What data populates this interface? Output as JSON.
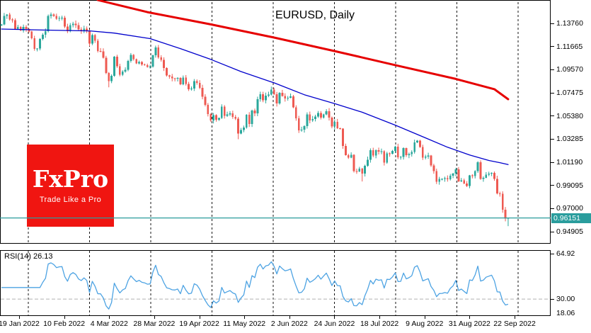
{
  "chart": {
    "title": "EURUSD, Daily",
    "symbol": "EURUSD",
    "timeframe": "Daily",
    "current_price": "0.96151"
  },
  "logo": {
    "name": "FxPro",
    "tagline": "Trade Like a Pro",
    "bg_color": "#f01511",
    "text_color": "#ffffff"
  },
  "price_axis": {
    "labels": [
      "1.13760",
      "1.11665",
      "1.09570",
      "1.07475",
      "1.05380",
      "1.03285",
      "1.01190",
      "0.99095",
      "0.97000",
      "0.94905"
    ],
    "current_label": "0.96151",
    "current_bg": "#2a9d9d"
  },
  "rsi_panel": {
    "label": "RSI(14) 26.13",
    "indicator": "RSI(14)",
    "value": "26.13",
    "scale_labels": [
      "64.92",
      "30.00",
      "18.06"
    ],
    "scale_values": [
      64.92,
      30.0,
      18.06
    ]
  },
  "date_axis": {
    "labels": [
      "19 Jan 2022",
      "10 Feb 2022",
      "4 Mar 2022",
      "28 Mar 2022",
      "19 Apr 2022",
      "11 May 2022",
      "2 Jun 2022",
      "24 Jun 2022",
      "18 Jul 2022",
      "9 Aug 2022",
      "31 Aug 2022",
      "22 Sep 2022"
    ]
  },
  "colors": {
    "bull": "#2aa79b",
    "bear": "#ee5a52",
    "sma_slow": "#e60000",
    "sma_fast": "#0000cc",
    "rsi_line": "#4da3e3",
    "price_line": "#2a9d9d",
    "grid": "#151515",
    "rsi_level": "#b0b0b0",
    "border": "#000000",
    "background": "#ffffff",
    "text": "#000000"
  },
  "chart_data": {
    "type": "candlestick",
    "title": "EURUSD, Daily",
    "x_tick_labels": [
      "19 Jan 2022",
      "10 Feb 2022",
      "4 Mar 2022",
      "28 Mar 2022",
      "19 Apr 2022",
      "11 May 2022",
      "2 Jun 2022",
      "24 Jun 2022",
      "18 Jul 2022",
      "9 Aug 2022",
      "31 Aug 2022",
      "22 Sep 2022"
    ],
    "y_ticks": [
      1.1376,
      1.11665,
      1.0957,
      1.07475,
      1.0538,
      1.03285,
      1.0119,
      0.99095,
      0.97,
      0.94905
    ],
    "current_price": 0.96151,
    "closes": [
      1.1367,
      1.1444,
      1.1455,
      1.1411,
      1.1406,
      1.1324,
      1.1344,
      1.1313,
      1.1345,
      1.1326,
      1.1301,
      1.124,
      1.1144,
      1.1148,
      1.1235,
      1.1273,
      1.1305,
      1.1442,
      1.1455,
      1.1442,
      1.1417,
      1.1424,
      1.1426,
      1.1348,
      1.1306,
      1.1359,
      1.1374,
      1.136,
      1.1323,
      1.1309,
      1.1327,
      1.1307,
      1.1193,
      1.127,
      1.1218,
      1.1125,
      1.1124,
      1.1066,
      1.0926,
      1.0854,
      1.0901,
      1.1075,
      1.0988,
      1.0911,
      1.0941,
      1.0955,
      1.1036,
      1.1091,
      1.1051,
      1.1015,
      1.1028,
      1.1004,
      1.0997,
      1.0982,
      1.0984,
      1.1086,
      1.1158,
      1.1067,
      1.1045,
      1.0971,
      1.0905,
      1.0895,
      1.0879,
      1.0876,
      1.0883,
      1.0826,
      1.0886,
      1.0828,
      1.0781,
      1.0785,
      1.0853,
      1.0838,
      1.0793,
      1.0711,
      1.0637,
      1.0556,
      1.0498,
      1.0545,
      1.0504,
      1.0519,
      1.0622,
      1.054,
      1.0551,
      1.056,
      1.0528,
      1.0513,
      1.0379,
      1.0411,
      1.0434,
      1.0549,
      1.0465,
      1.0588,
      1.0563,
      1.0691,
      1.0735,
      1.068,
      1.0723,
      1.0733,
      1.0777,
      1.0734,
      1.065,
      1.0748,
      1.0719,
      1.0695,
      1.0703,
      1.0716,
      1.0617,
      1.0518,
      1.0408,
      1.0414,
      1.0445,
      1.0551,
      1.0496,
      1.0511,
      1.0533,
      1.0566,
      1.0523,
      1.0553,
      1.0581,
      1.0523,
      1.0442,
      1.0484,
      1.0426,
      1.0423,
      1.0266,
      1.0184,
      1.016,
      1.0186,
      1.004,
      1.0036,
      1.006,
      1.0018,
      1.0088,
      1.0143,
      1.0227,
      1.018,
      1.0228,
      1.0214,
      1.0219,
      1.0115,
      1.0199,
      1.0196,
      1.0221,
      1.0261,
      1.0165,
      1.0166,
      1.0246,
      1.0182,
      1.0193,
      1.0212,
      1.0298,
      1.0316,
      1.0257,
      1.016,
      1.0171,
      1.018,
      1.009,
      1.0039,
      0.9942,
      0.9967,
      0.9968,
      0.9974,
      0.9965,
      0.9998,
      1.0015,
      1.0054,
      0.9945,
      0.9955,
      0.9928,
      0.9903,
      1.0,
      0.9995,
      1.004,
      1.012,
      0.997,
      0.9979,
      1.0006,
      1.0015,
      1.0023,
      0.997,
      0.9838,
      0.9835,
      0.969,
      0.9609,
      0.9615
    ],
    "wick_low_overrides": {
      "39": 0.0048,
      "86": 0.003,
      "131": 0.0066,
      "184": 0.0056
    },
    "overlays": [
      {
        "name": "long-term-ma",
        "color": "#e60000",
        "width": 3,
        "points_bar_price": [
          [
            35,
            1.1587
          ],
          [
            53,
            1.1478
          ],
          [
            76,
            1.1367
          ],
          [
            99,
            1.1248
          ],
          [
            121,
            1.1125
          ],
          [
            143,
            1.0998
          ],
          [
            165,
            1.0873
          ],
          [
            179,
            1.078
          ],
          [
            184,
            1.069
          ]
        ]
      },
      {
        "name": "medium-term-ma",
        "color": "#0000cc",
        "width": 1.3,
        "points_bar_price": [
          [
            0,
            1.1325
          ],
          [
            15,
            1.1316
          ],
          [
            32,
            1.1308
          ],
          [
            41,
            1.1288
          ],
          [
            54,
            1.1238
          ],
          [
            65,
            1.1148
          ],
          [
            76,
            1.105
          ],
          [
            87,
            1.094
          ],
          [
            99,
            1.0838
          ],
          [
            110,
            1.073
          ],
          [
            121,
            1.065
          ],
          [
            131,
            1.0572
          ],
          [
            143,
            1.0455
          ],
          [
            154,
            1.034
          ],
          [
            162,
            1.0255
          ],
          [
            170,
            1.0185
          ],
          [
            177,
            1.0135
          ],
          [
            181,
            1.0115
          ],
          [
            184,
            1.0098
          ]
        ]
      }
    ],
    "indicator": {
      "type": "RSI",
      "period": 14,
      "current": 26.13,
      "scale_max": 64.92,
      "scale_min": 18.06,
      "level": 30.0
    }
  }
}
